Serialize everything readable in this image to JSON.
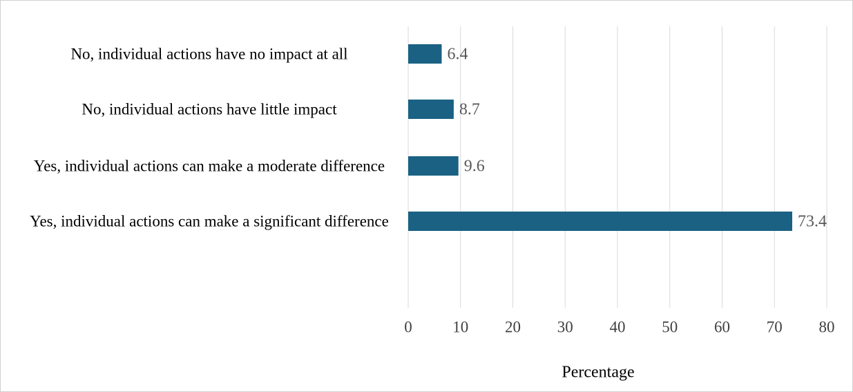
{
  "chart_data": {
    "type": "bar",
    "orientation": "horizontal",
    "categories": [
      "No, individual actions have no impact at all",
      "No, individual actions have little impact",
      "Yes, individual actions can make a moderate difference",
      "Yes, individual actions can make a significant difference"
    ],
    "values": [
      6.4,
      8.7,
      9.6,
      73.4
    ],
    "color": "#1a6183",
    "x_label": "Percentage",
    "xlim": [
      0,
      80
    ],
    "xticks": [
      0,
      10,
      20,
      30,
      40,
      50,
      60,
      70,
      80
    ],
    "grid": true
  }
}
